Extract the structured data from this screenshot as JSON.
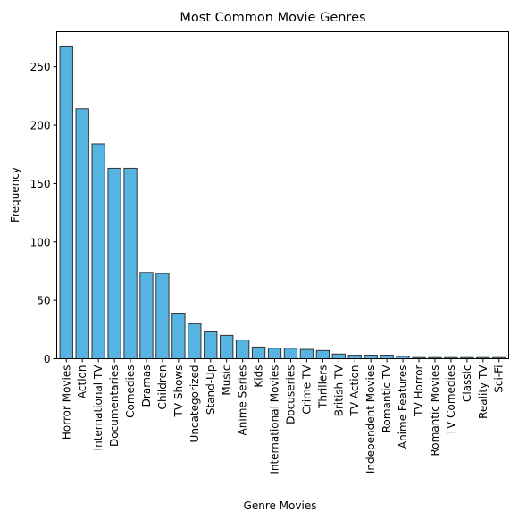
{
  "chart_data": {
    "type": "bar",
    "title": "Most Common Movie Genres",
    "xlabel": "Genre Movies",
    "ylabel": "Frequency",
    "ylim": [
      0,
      280
    ],
    "yticks": [
      0,
      50,
      100,
      150,
      200,
      250
    ],
    "grid": false,
    "bar_color": "#56b4e3",
    "edge_color": "#333333",
    "categories": [
      "Horror Movies",
      "Action",
      "International TV",
      "Documentaries",
      "Comedies",
      "Dramas",
      "Children",
      "TV Shows",
      "Uncategorized",
      "Stand-Up",
      "Music",
      "Anime Series",
      "Kids",
      "International Movies",
      "Docuseries",
      "Crime TV",
      "Thrillers",
      "British TV",
      "TV Action",
      "Independent Movies",
      "Romantic TV",
      "Anime Features",
      "TV Horror",
      "Romantic Movies",
      "TV Comedies",
      "Classic",
      "Reality TV",
      "Sci-Fi"
    ],
    "values": [
      267,
      214,
      184,
      163,
      163,
      74,
      73,
      39,
      30,
      23,
      20,
      16,
      10,
      9,
      9,
      8,
      7,
      4,
      3,
      3,
      3,
      2,
      1,
      1,
      1,
      1,
      1,
      1
    ]
  }
}
